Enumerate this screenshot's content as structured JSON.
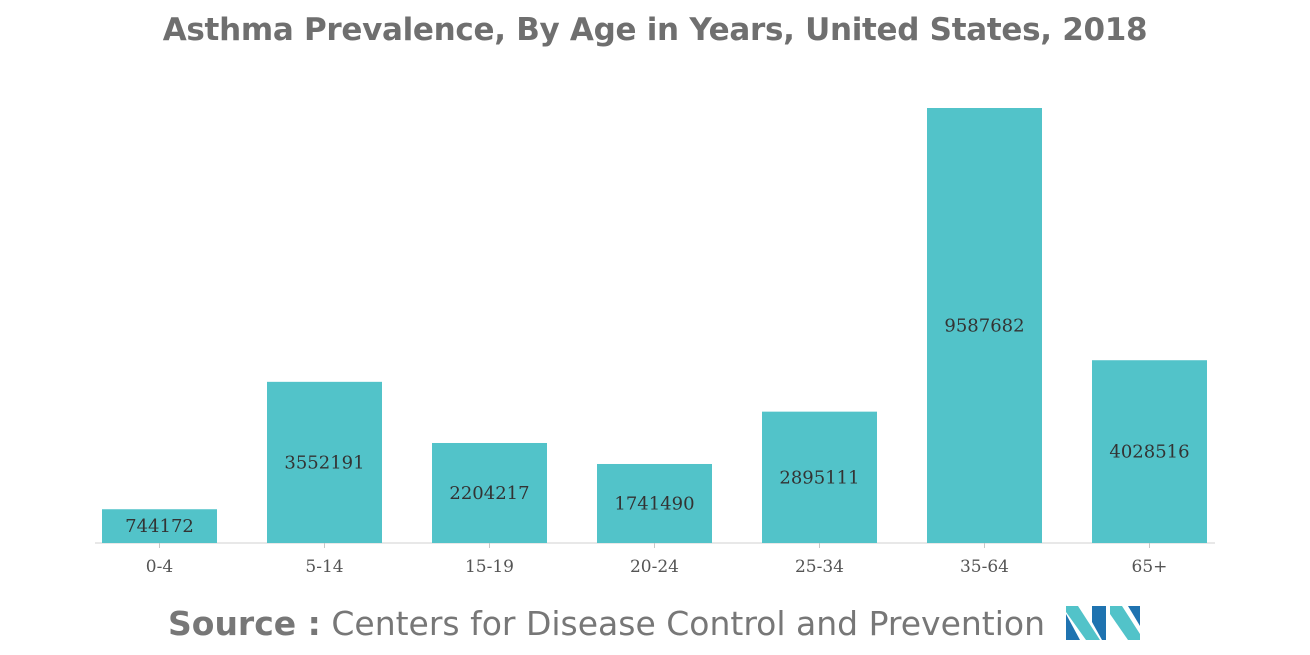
{
  "chart_data": {
    "type": "bar",
    "title": "Asthma Prevalence, By Age in Years, United States, 2018",
    "categories": [
      "0-4",
      "5-14",
      "15-19",
      "20-24",
      "25-34",
      "35-64",
      "65+"
    ],
    "values": [
      744172,
      3552191,
      2204217,
      1741490,
      2895111,
      9587682,
      4028516
    ],
    "xlabel": "",
    "ylabel": "",
    "ylim": [
      0,
      9587682
    ],
    "grid": false,
    "legend": "none",
    "bar_color": "#52c3c9"
  },
  "source": {
    "prefix": "Source :",
    "text": "Centers for Disease Control and Prevention"
  },
  "logo": {
    "icon": "mordor-intelligence-logo-icon",
    "colors": [
      "#1f73b0",
      "#52c3c9"
    ]
  }
}
